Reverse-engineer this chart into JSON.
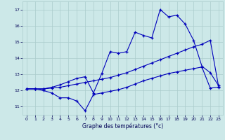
{
  "xlabel": "Graphe des températures (°c)",
  "bg_color": "#cce8e8",
  "line_color": "#0000bb",
  "grid_color": "#aacccc",
  "xlim": [
    -0.5,
    23.5
  ],
  "ylim": [
    10.5,
    17.5
  ],
  "yticks": [
    11,
    12,
    13,
    14,
    15,
    16,
    17
  ],
  "xticks": [
    0,
    1,
    2,
    3,
    4,
    5,
    6,
    7,
    8,
    9,
    10,
    11,
    12,
    13,
    14,
    15,
    16,
    17,
    18,
    19,
    20,
    21,
    22,
    23
  ],
  "series1_x": [
    0,
    1,
    2,
    3,
    4,
    5,
    6,
    7,
    8,
    9,
    10,
    11,
    12,
    13,
    14,
    15,
    16,
    17,
    18,
    19,
    20,
    21,
    22,
    23
  ],
  "series1_y": [
    12.1,
    12.1,
    12.0,
    11.85,
    11.55,
    11.55,
    11.35,
    10.75,
    11.75,
    11.85,
    11.95,
    12.05,
    12.2,
    12.4,
    12.6,
    12.75,
    12.9,
    13.05,
    13.15,
    13.25,
    13.35,
    13.45,
    12.15,
    12.2
  ],
  "series2_x": [
    0,
    1,
    2,
    3,
    4,
    5,
    6,
    7,
    8,
    9,
    10,
    11,
    12,
    13,
    14,
    15,
    16,
    17,
    18,
    19,
    20,
    21,
    22,
    23
  ],
  "series2_y": [
    12.1,
    12.1,
    12.1,
    12.15,
    12.2,
    12.3,
    12.4,
    12.5,
    12.6,
    12.7,
    12.8,
    12.95,
    13.1,
    13.3,
    13.5,
    13.7,
    13.9,
    14.1,
    14.3,
    14.5,
    14.7,
    14.85,
    15.1,
    12.25
  ],
  "series3_x": [
    0,
    1,
    2,
    3,
    4,
    5,
    6,
    7,
    8,
    9,
    10,
    11,
    12,
    13,
    14,
    15,
    16,
    17,
    18,
    19,
    20,
    21,
    22,
    23
  ],
  "series3_y": [
    12.1,
    12.1,
    12.1,
    12.2,
    12.35,
    12.55,
    12.75,
    12.85,
    11.85,
    13.05,
    14.4,
    14.3,
    14.4,
    15.6,
    15.4,
    15.25,
    17.0,
    16.55,
    16.65,
    16.1,
    15.1,
    13.5,
    13.1,
    12.3
  ]
}
